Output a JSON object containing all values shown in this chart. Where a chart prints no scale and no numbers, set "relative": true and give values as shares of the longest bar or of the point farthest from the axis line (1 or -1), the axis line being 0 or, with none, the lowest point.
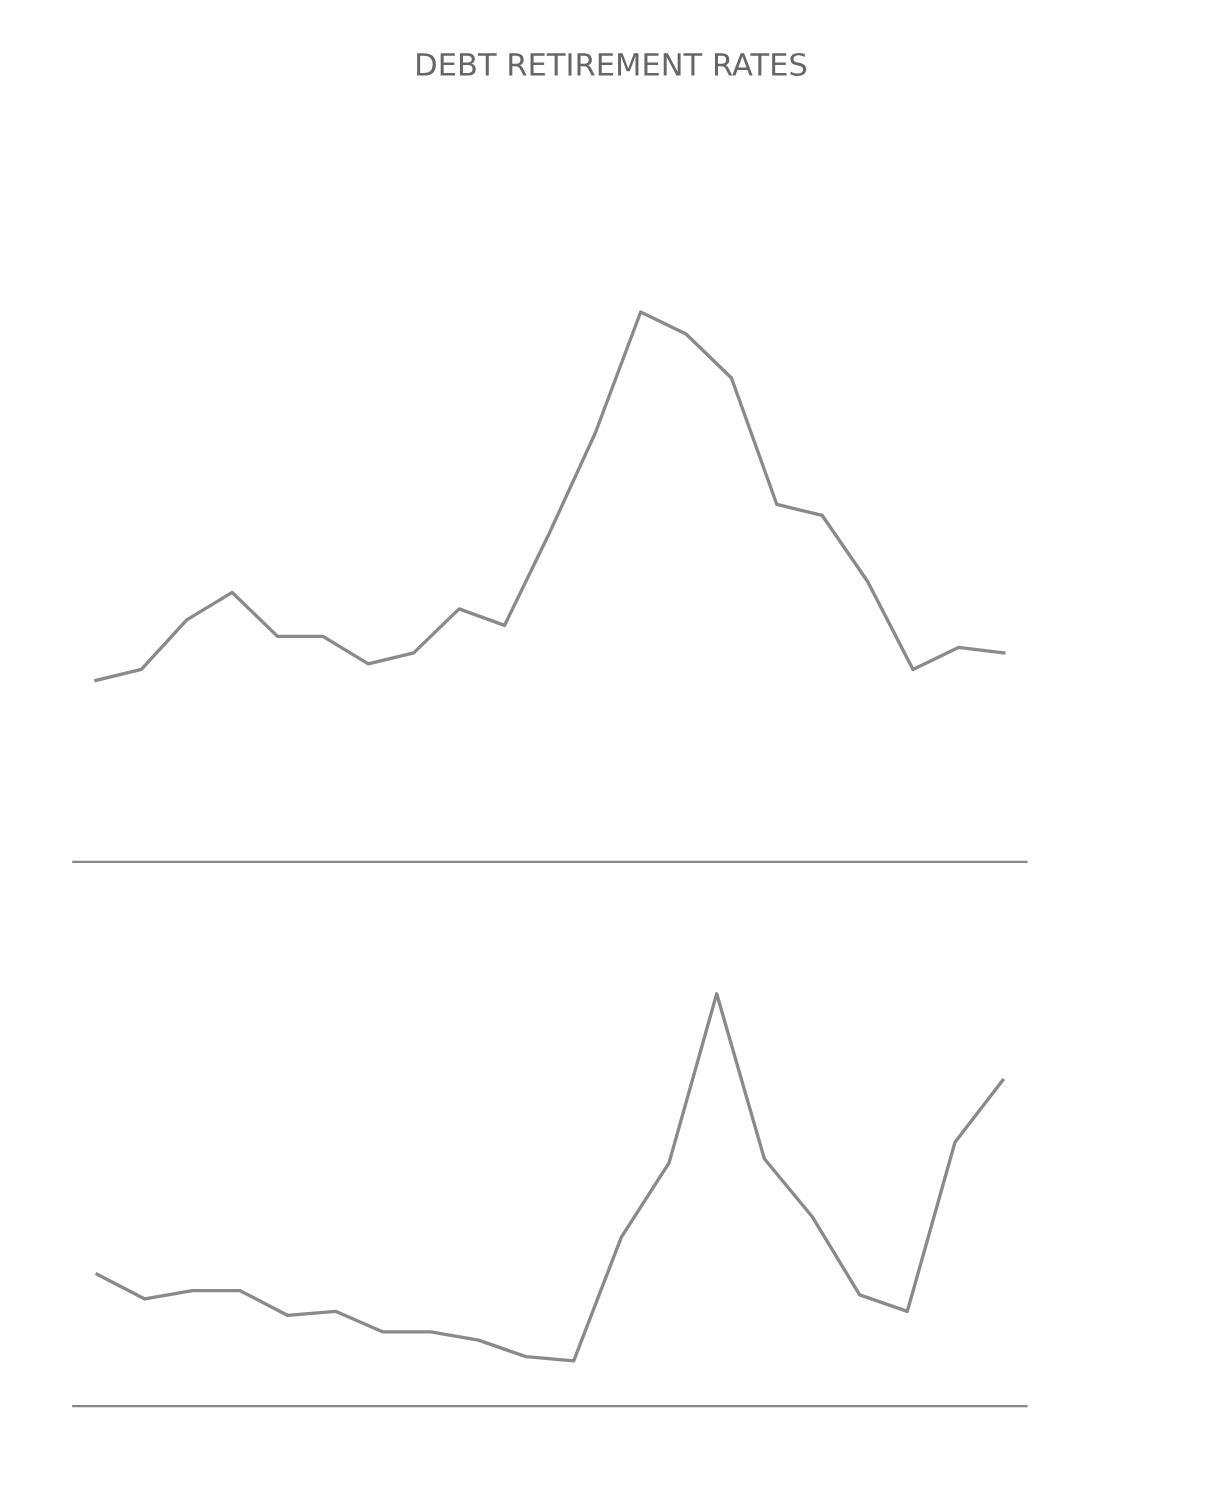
{
  "chart_data": [
    {
      "type": "line",
      "title": "DEBT RETIREMENT RATES",
      "relative": true,
      "color": "#8a8a8a",
      "categories": [
        null,
        null,
        null,
        null,
        null,
        null,
        null,
        null,
        null,
        null,
        null,
        null,
        null,
        null,
        null,
        null,
        null,
        null,
        null,
        null,
        null
      ],
      "values": [
        0.33,
        0.35,
        0.44,
        0.49,
        0.41,
        0.41,
        0.36,
        0.38,
        0.46,
        0.43,
        0.6,
        0.78,
        1,
        0.96,
        0.88,
        0.65,
        0.63,
        0.51,
        0.35,
        0.39,
        0.38
      ]
    },
    {
      "type": "line",
      "relative": true,
      "color": "#8a8a8a",
      "categories": [
        null,
        null,
        null,
        null,
        null,
        null,
        null,
        null,
        null,
        null,
        null,
        null,
        null,
        null,
        null,
        null,
        null,
        null,
        null,
        null
      ],
      "values": [
        0.32,
        0.26,
        0.28,
        0.28,
        0.22,
        0.23,
        0.18,
        0.18,
        0.16,
        0.12,
        0.11,
        0.41,
        0.59,
        1,
        0.6,
        0.46,
        0.27,
        0.23,
        0.64,
        0.79
      ]
    }
  ]
}
